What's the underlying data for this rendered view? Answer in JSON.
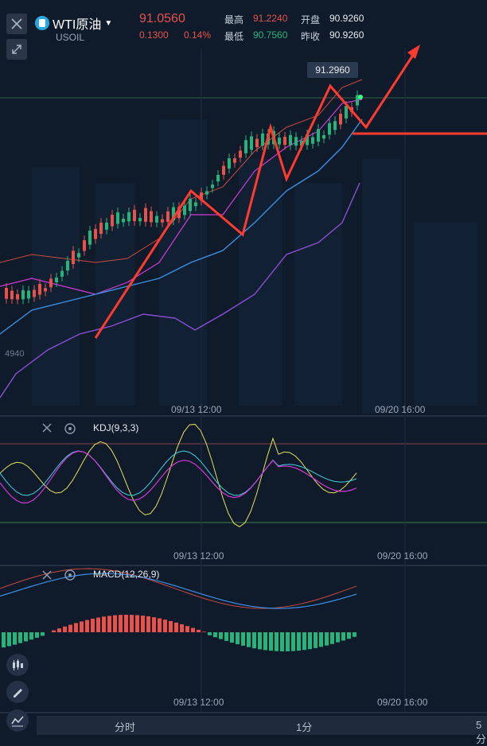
{
  "header": {
    "symbol_title": "WTI原油",
    "subtitle": "USOIL",
    "price": "91.0560",
    "change": "0.1300",
    "change_pct": "0.14%",
    "high_label": "最高",
    "high_value": "91.2240",
    "low_label": "最低",
    "low_value": "90.7560",
    "open_label": "开盘",
    "open_value": "90.9260",
    "prev_label": "昨收",
    "prev_value": "90.9260"
  },
  "price_chart": {
    "peak_price_tag": "91.2960",
    "left_axis_partial": "4940"
  },
  "kdj": {
    "label": "KDJ(9,3,3)"
  },
  "macd": {
    "label": "MACD(12,26,9)"
  },
  "time_labels": {
    "t1": "09/13 12:00",
    "t2": "09/20 16:00"
  },
  "tabs": [
    "分时",
    "1分",
    "5分"
  ],
  "icons": {
    "close": "close-icon",
    "collapse": "collapse-icon",
    "settings": "gear-icon",
    "candle": "candlestick-icon",
    "draw": "pencil-icon",
    "indicator": "indicator-icon"
  },
  "colors": {
    "up": "#e8524a",
    "down": "#27b47a",
    "arrow": "#ff3b30",
    "background": "#0f1b2b"
  }
}
